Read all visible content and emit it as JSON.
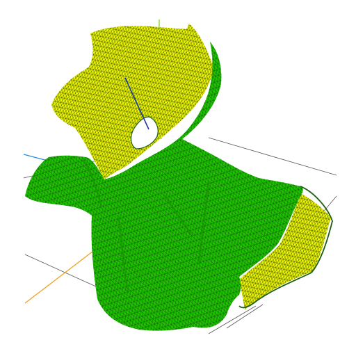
{
  "viewport": {
    "background": "#ffffff",
    "mesh": {
      "outer_surface_color": "#1fc400",
      "inner_surface_color": "#f5f500",
      "edge_color": "#0f4a0f",
      "boundary_color": "#1e5f14"
    },
    "axes": {
      "x_axis_color": "#f0a020",
      "y_axis_color": "#7fd82a",
      "z_axis_color": "#2a8ae0",
      "inner_axis_color": "#1a3aa8"
    },
    "grid": {
      "color": "#555555"
    }
  }
}
